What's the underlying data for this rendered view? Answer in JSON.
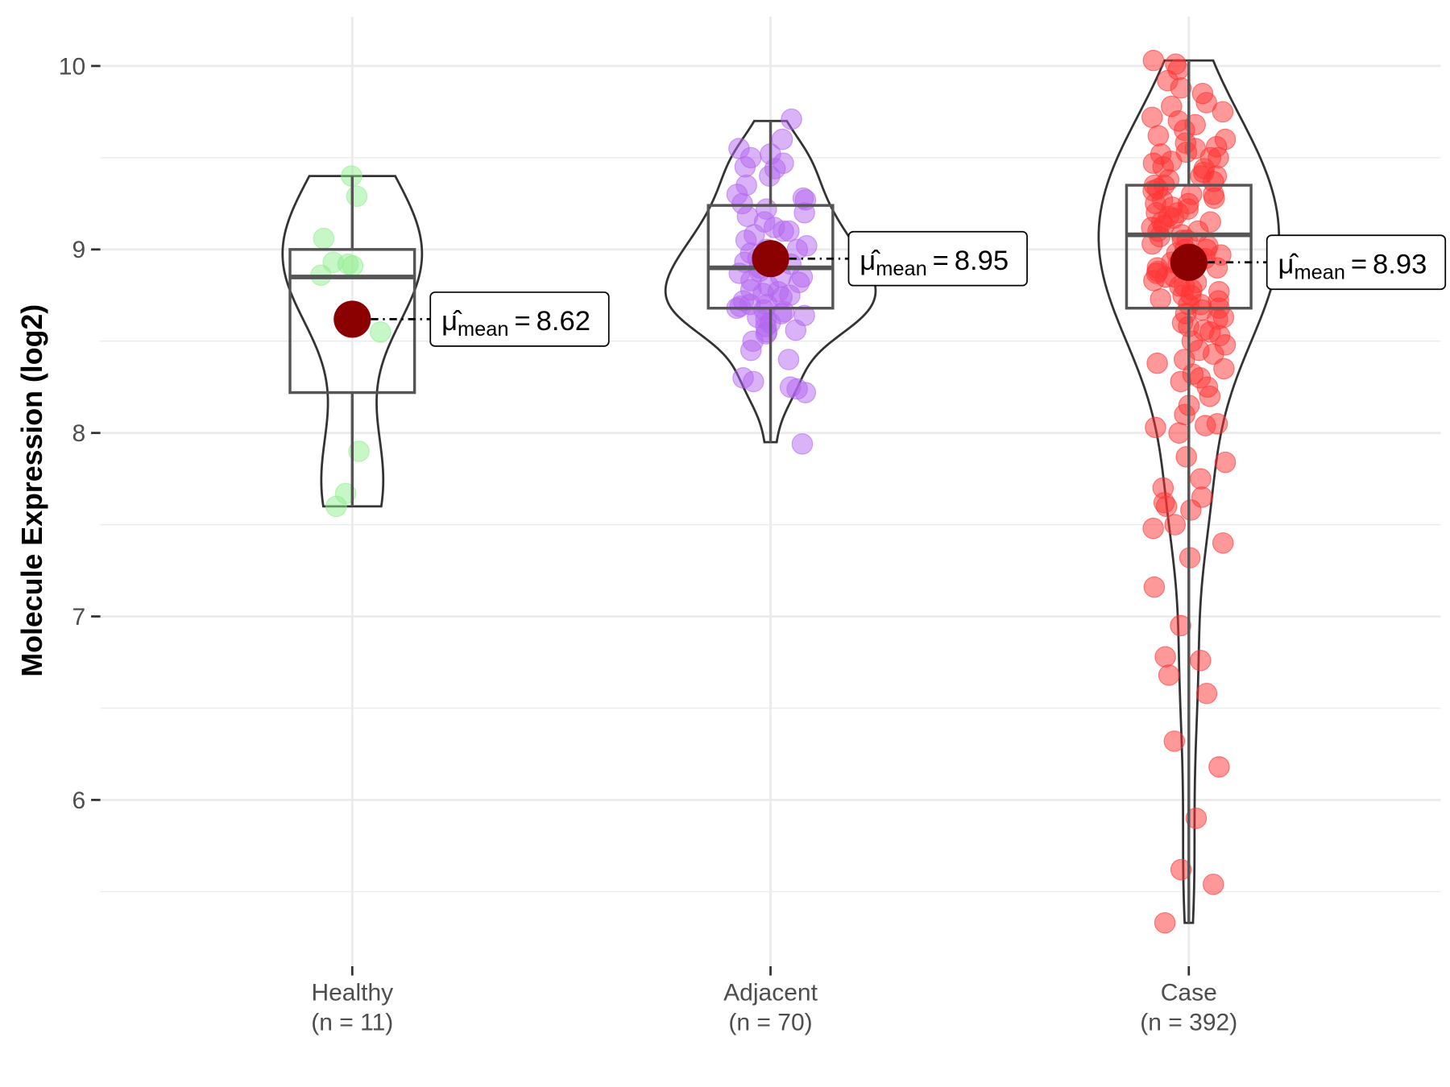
{
  "chart_data": {
    "type": "violin",
    "title": "",
    "xlabel": "",
    "ylabel": "Molecule Expression (log2)",
    "ylim": [
      5.1,
      10.3
    ],
    "yticks": [
      "6",
      "7",
      "8",
      "9",
      "10"
    ],
    "grid": true,
    "categories": [
      {
        "name": "Healthy",
        "n_label": "(n = 11)",
        "color": "#90EE90",
        "box": {
          "min": 7.6,
          "q1": 8.22,
          "median": 8.85,
          "q3": 9.0,
          "max": 9.4
        },
        "mean": 8.62,
        "mean_label": "8.62",
        "points": [
          9.4,
          9.29,
          9.06,
          8.93,
          8.92,
          8.91,
          8.86,
          8.55,
          7.9,
          7.67,
          7.6
        ]
      },
      {
        "name": "Adjacent",
        "n_label": "(n = 70)",
        "color": "#B366F0",
        "box": {
          "min": 7.95,
          "q1": 8.68,
          "median": 8.9,
          "q3": 9.24,
          "max": 9.7
        },
        "mean": 8.95,
        "mean_label": "8.95",
        "points": [
          9.71,
          9.6,
          9.55,
          9.52,
          9.5,
          9.47,
          9.45,
          9.44,
          9.4,
          9.35,
          9.3,
          9.28,
          9.27,
          9.25,
          9.22,
          9.2,
          9.18,
          9.15,
          9.12,
          9.1,
          9.08,
          9.05,
          9.02,
          9.0,
          8.98,
          8.96,
          8.95,
          8.93,
          8.92,
          8.9,
          8.88,
          8.87,
          8.85,
          8.83,
          8.82,
          8.8,
          8.78,
          8.77,
          8.76,
          8.75,
          8.74,
          8.72,
          8.7,
          8.7,
          8.69,
          8.68,
          8.67,
          8.66,
          8.65,
          8.64,
          8.63,
          8.62,
          8.6,
          8.58,
          8.56,
          8.55,
          8.54,
          8.5,
          8.45,
          8.4,
          8.3,
          8.28,
          8.25,
          8.24,
          8.22,
          7.94,
          9.0,
          9.1,
          8.85,
          8.95
        ]
      },
      {
        "name": "Case",
        "n_label": "(n = 392)",
        "color": "#FF3333",
        "box": {
          "min": 5.33,
          "q1": 8.68,
          "median": 9.08,
          "q3": 9.35,
          "max": 10.03
        },
        "mean": 8.93,
        "mean_label": "8.93",
        "points": [
          10.03,
          10.01,
          9.98,
          9.92,
          9.88,
          9.85,
          9.8,
          9.78,
          9.75,
          9.72,
          9.7,
          9.68,
          9.65,
          9.62,
          9.6,
          9.58,
          9.56,
          9.55,
          9.53,
          9.52,
          9.5,
          9.5,
          9.48,
          9.47,
          9.45,
          9.44,
          9.42,
          9.4,
          9.4,
          9.38,
          9.37,
          9.35,
          9.35,
          9.33,
          9.32,
          9.3,
          9.3,
          9.28,
          9.27,
          9.25,
          9.25,
          9.23,
          9.22,
          9.2,
          9.2,
          9.18,
          9.17,
          9.15,
          9.15,
          9.13,
          9.12,
          9.1,
          9.1,
          9.08,
          9.07,
          9.05,
          9.05,
          9.03,
          9.02,
          9.0,
          9.0,
          8.98,
          8.97,
          8.95,
          8.95,
          8.93,
          8.92,
          8.9,
          8.9,
          8.88,
          8.87,
          8.85,
          8.85,
          8.83,
          8.82,
          8.8,
          8.8,
          8.78,
          8.77,
          8.75,
          8.75,
          8.73,
          8.72,
          8.7,
          8.7,
          8.68,
          8.67,
          8.65,
          8.63,
          8.62,
          8.6,
          8.58,
          8.56,
          8.55,
          8.53,
          8.5,
          8.48,
          8.45,
          8.43,
          8.4,
          8.38,
          8.35,
          8.32,
          8.3,
          8.28,
          8.25,
          8.2,
          8.15,
          8.1,
          8.05,
          8.04,
          8.03,
          8.0,
          7.87,
          7.84,
          7.75,
          7.7,
          7.65,
          7.62,
          7.6,
          7.58,
          7.5,
          7.48,
          7.4,
          7.32,
          7.16,
          6.95,
          6.78,
          6.76,
          6.68,
          6.58,
          6.32,
          6.18,
          5.9,
          5.62,
          5.54,
          5.33
        ]
      }
    ],
    "mean_symbol": "μ̂",
    "mean_subscript": "mean",
    "mean_equals": "=",
    "mean_dot_color": "#8B0000"
  }
}
